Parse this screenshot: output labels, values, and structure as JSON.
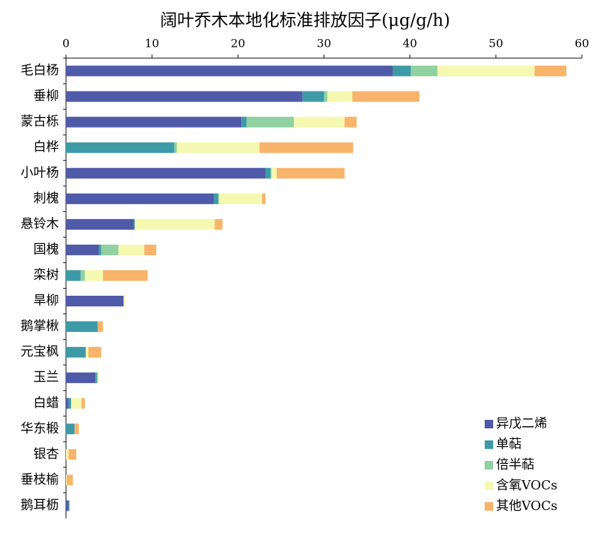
{
  "chart_data": {
    "type": "stacked-barh",
    "title": "阔叶乔木本地化标准排放因子(μg/g/h)",
    "categories": [
      "毛白杨",
      "垂柳",
      "蒙古栎",
      "白桦",
      "小叶杨",
      "刺槐",
      "悬铃木",
      "国槐",
      "栾树",
      "旱柳",
      "鹅掌楸",
      "元宝枫",
      "玉兰",
      "白蜡",
      "华东椴",
      "银杏",
      "垂枝榆",
      "鹅耳枥"
    ],
    "series": [
      {
        "name": "异戊二烯",
        "color": "#4f5ba8",
        "values": [
          38.0,
          27.5,
          20.4,
          0,
          23.2,
          17.2,
          7.9,
          3.8,
          0,
          6.7,
          0,
          0,
          3.4,
          0.3,
          0,
          0,
          0,
          0.3
        ]
      },
      {
        "name": "单萜",
        "color": "#3f9aa8",
        "values": [
          2.1,
          2.5,
          0.6,
          12.6,
          0.6,
          0.5,
          0.1,
          0.3,
          1.7,
          0,
          3.7,
          2.3,
          0.2,
          0.3,
          1.0,
          0,
          0,
          0.1
        ]
      },
      {
        "name": "倍半萜",
        "color": "#8fd1a0",
        "values": [
          3.1,
          0.4,
          5.5,
          0.3,
          0.1,
          0.1,
          0,
          2.0,
          0.5,
          0,
          0,
          0,
          0.1,
          0,
          0,
          0,
          0,
          0
        ]
      },
      {
        "name": "含氧VOCs",
        "color": "#f5f8b0",
        "values": [
          11.3,
          2.9,
          5.9,
          9.6,
          0.6,
          5.0,
          9.3,
          3.0,
          2.1,
          0.2,
          0,
          0.3,
          0.1,
          1.2,
          0,
          0.3,
          0.1,
          0
        ]
      },
      {
        "name": "其他VOCs",
        "color": "#f8b46a",
        "values": [
          3.7,
          7.8,
          1.4,
          10.9,
          7.9,
          0.4,
          0.9,
          1.4,
          5.2,
          0,
          0.6,
          1.5,
          0,
          0.4,
          0.5,
          0.9,
          0.7,
          0
        ]
      }
    ],
    "xlim": [
      0,
      60
    ],
    "xticks": [
      0,
      10,
      20,
      30,
      40,
      50,
      60
    ],
    "legend": "lower right"
  }
}
